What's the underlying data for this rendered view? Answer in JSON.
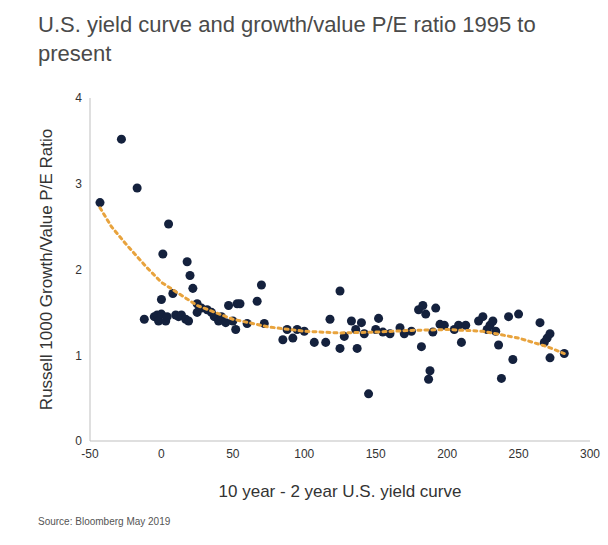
{
  "chart_data": {
    "type": "scatter",
    "title": "U.S. yield curve and growth/value P/E ratio 1995 to present",
    "x_label": "10 year - 2 year U.S. yield curve",
    "y_label": "Russell 1000 Growth/Value P/E Ratio",
    "source": "Source: Bloomberg May 2019",
    "xlim": [
      -50,
      300
    ],
    "xticks": [
      -50,
      0,
      50,
      100,
      150,
      200,
      250,
      300
    ],
    "ylim": [
      0,
      4
    ],
    "yticks": [
      0,
      1,
      2,
      3,
      4
    ],
    "grid": false,
    "series": [
      {
        "type": "scatter",
        "color": "#14213d",
        "marker": "circle",
        "x": [
          -43,
          -28,
          -17,
          -12,
          -5,
          -3,
          -2,
          0,
          0,
          1,
          3,
          4,
          5,
          8,
          10,
          12,
          14,
          17,
          18,
          19,
          20,
          22,
          25,
          25,
          28,
          32,
          35,
          37,
          40,
          42,
          45,
          47,
          50,
          52,
          53,
          55,
          60,
          67,
          70,
          72,
          85,
          88,
          92,
          95,
          100,
          107,
          115,
          118,
          125,
          125,
          128,
          133,
          136,
          137,
          140,
          142,
          145,
          150,
          152,
          155,
          160,
          167,
          170,
          175,
          180,
          182,
          183,
          185,
          187,
          188,
          190,
          192,
          195,
          198,
          205,
          208,
          210,
          213,
          222,
          225,
          228,
          230,
          232,
          234,
          236,
          238,
          243,
          246,
          250,
          265,
          268,
          270,
          272,
          272,
          282
        ],
        "values": [
          2.78,
          3.52,
          2.95,
          1.42,
          1.45,
          1.47,
          1.4,
          1.65,
          1.48,
          2.18,
          1.4,
          1.45,
          2.53,
          1.72,
          1.47,
          1.45,
          1.47,
          1.42,
          2.09,
          1.4,
          1.93,
          1.78,
          1.6,
          1.5,
          1.55,
          1.53,
          1.5,
          1.45,
          1.4,
          1.45,
          1.38,
          1.58,
          1.4,
          1.3,
          1.6,
          1.6,
          1.37,
          1.63,
          1.82,
          1.37,
          1.18,
          1.3,
          1.2,
          1.3,
          1.28,
          1.15,
          1.15,
          1.42,
          1.08,
          1.75,
          1.22,
          1.4,
          1.3,
          1.08,
          1.38,
          1.25,
          0.55,
          1.3,
          1.43,
          1.27,
          1.25,
          1.32,
          1.25,
          1.28,
          1.53,
          1.1,
          1.58,
          1.48,
          0.72,
          0.82,
          1.27,
          1.55,
          1.36,
          1.35,
          1.3,
          1.35,
          1.15,
          1.35,
          1.4,
          1.45,
          1.3,
          1.35,
          1.4,
          1.28,
          1.12,
          0.73,
          1.45,
          0.95,
          1.48,
          1.38,
          1.15,
          1.2,
          0.97,
          1.25,
          1.02
        ]
      },
      {
        "type": "line",
        "color": "#e8a33d",
        "line_style": "dotted",
        "x": [
          -43,
          -35,
          -25,
          -10,
          0,
          25,
          50,
          75,
          100,
          125,
          150,
          175,
          200,
          225,
          250,
          270,
          282
        ],
        "values": [
          2.72,
          2.5,
          2.3,
          2.02,
          1.85,
          1.58,
          1.42,
          1.33,
          1.28,
          1.26,
          1.27,
          1.29,
          1.3,
          1.28,
          1.2,
          1.1,
          1.02
        ]
      }
    ]
  }
}
